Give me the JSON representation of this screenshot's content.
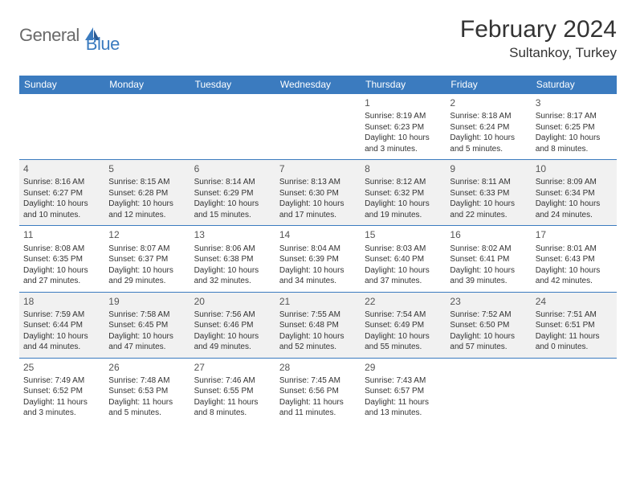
{
  "brand": {
    "text1": "General",
    "text2": "Blue",
    "icon_color": "#3b7bbf"
  },
  "header": {
    "month_title": "February 2024",
    "location": "Sultankoy, Turkey"
  },
  "palette": {
    "header_bg": "#3b7bbf",
    "header_fg": "#ffffff",
    "row_border": "#3b7bbf",
    "shaded_bg": "#f1f1f1",
    "text": "#333333"
  },
  "weekdays": [
    "Sunday",
    "Monday",
    "Tuesday",
    "Wednesday",
    "Thursday",
    "Friday",
    "Saturday"
  ],
  "weeks": [
    {
      "shaded": false,
      "days": [
        null,
        null,
        null,
        null,
        {
          "n": "1",
          "sunrise": "Sunrise: 8:19 AM",
          "sunset": "Sunset: 6:23 PM",
          "day1": "Daylight: 10 hours",
          "day2": "and 3 minutes."
        },
        {
          "n": "2",
          "sunrise": "Sunrise: 8:18 AM",
          "sunset": "Sunset: 6:24 PM",
          "day1": "Daylight: 10 hours",
          "day2": "and 5 minutes."
        },
        {
          "n": "3",
          "sunrise": "Sunrise: 8:17 AM",
          "sunset": "Sunset: 6:25 PM",
          "day1": "Daylight: 10 hours",
          "day2": "and 8 minutes."
        }
      ]
    },
    {
      "shaded": true,
      "days": [
        {
          "n": "4",
          "sunrise": "Sunrise: 8:16 AM",
          "sunset": "Sunset: 6:27 PM",
          "day1": "Daylight: 10 hours",
          "day2": "and 10 minutes."
        },
        {
          "n": "5",
          "sunrise": "Sunrise: 8:15 AM",
          "sunset": "Sunset: 6:28 PM",
          "day1": "Daylight: 10 hours",
          "day2": "and 12 minutes."
        },
        {
          "n": "6",
          "sunrise": "Sunrise: 8:14 AM",
          "sunset": "Sunset: 6:29 PM",
          "day1": "Daylight: 10 hours",
          "day2": "and 15 minutes."
        },
        {
          "n": "7",
          "sunrise": "Sunrise: 8:13 AM",
          "sunset": "Sunset: 6:30 PM",
          "day1": "Daylight: 10 hours",
          "day2": "and 17 minutes."
        },
        {
          "n": "8",
          "sunrise": "Sunrise: 8:12 AM",
          "sunset": "Sunset: 6:32 PM",
          "day1": "Daylight: 10 hours",
          "day2": "and 19 minutes."
        },
        {
          "n": "9",
          "sunrise": "Sunrise: 8:11 AM",
          "sunset": "Sunset: 6:33 PM",
          "day1": "Daylight: 10 hours",
          "day2": "and 22 minutes."
        },
        {
          "n": "10",
          "sunrise": "Sunrise: 8:09 AM",
          "sunset": "Sunset: 6:34 PM",
          "day1": "Daylight: 10 hours",
          "day2": "and 24 minutes."
        }
      ]
    },
    {
      "shaded": false,
      "days": [
        {
          "n": "11",
          "sunrise": "Sunrise: 8:08 AM",
          "sunset": "Sunset: 6:35 PM",
          "day1": "Daylight: 10 hours",
          "day2": "and 27 minutes."
        },
        {
          "n": "12",
          "sunrise": "Sunrise: 8:07 AM",
          "sunset": "Sunset: 6:37 PM",
          "day1": "Daylight: 10 hours",
          "day2": "and 29 minutes."
        },
        {
          "n": "13",
          "sunrise": "Sunrise: 8:06 AM",
          "sunset": "Sunset: 6:38 PM",
          "day1": "Daylight: 10 hours",
          "day2": "and 32 minutes."
        },
        {
          "n": "14",
          "sunrise": "Sunrise: 8:04 AM",
          "sunset": "Sunset: 6:39 PM",
          "day1": "Daylight: 10 hours",
          "day2": "and 34 minutes."
        },
        {
          "n": "15",
          "sunrise": "Sunrise: 8:03 AM",
          "sunset": "Sunset: 6:40 PM",
          "day1": "Daylight: 10 hours",
          "day2": "and 37 minutes."
        },
        {
          "n": "16",
          "sunrise": "Sunrise: 8:02 AM",
          "sunset": "Sunset: 6:41 PM",
          "day1": "Daylight: 10 hours",
          "day2": "and 39 minutes."
        },
        {
          "n": "17",
          "sunrise": "Sunrise: 8:01 AM",
          "sunset": "Sunset: 6:43 PM",
          "day1": "Daylight: 10 hours",
          "day2": "and 42 minutes."
        }
      ]
    },
    {
      "shaded": true,
      "days": [
        {
          "n": "18",
          "sunrise": "Sunrise: 7:59 AM",
          "sunset": "Sunset: 6:44 PM",
          "day1": "Daylight: 10 hours",
          "day2": "and 44 minutes."
        },
        {
          "n": "19",
          "sunrise": "Sunrise: 7:58 AM",
          "sunset": "Sunset: 6:45 PM",
          "day1": "Daylight: 10 hours",
          "day2": "and 47 minutes."
        },
        {
          "n": "20",
          "sunrise": "Sunrise: 7:56 AM",
          "sunset": "Sunset: 6:46 PM",
          "day1": "Daylight: 10 hours",
          "day2": "and 49 minutes."
        },
        {
          "n": "21",
          "sunrise": "Sunrise: 7:55 AM",
          "sunset": "Sunset: 6:48 PM",
          "day1": "Daylight: 10 hours",
          "day2": "and 52 minutes."
        },
        {
          "n": "22",
          "sunrise": "Sunrise: 7:54 AM",
          "sunset": "Sunset: 6:49 PM",
          "day1": "Daylight: 10 hours",
          "day2": "and 55 minutes."
        },
        {
          "n": "23",
          "sunrise": "Sunrise: 7:52 AM",
          "sunset": "Sunset: 6:50 PM",
          "day1": "Daylight: 10 hours",
          "day2": "and 57 minutes."
        },
        {
          "n": "24",
          "sunrise": "Sunrise: 7:51 AM",
          "sunset": "Sunset: 6:51 PM",
          "day1": "Daylight: 11 hours",
          "day2": "and 0 minutes."
        }
      ]
    },
    {
      "shaded": false,
      "days": [
        {
          "n": "25",
          "sunrise": "Sunrise: 7:49 AM",
          "sunset": "Sunset: 6:52 PM",
          "day1": "Daylight: 11 hours",
          "day2": "and 3 minutes."
        },
        {
          "n": "26",
          "sunrise": "Sunrise: 7:48 AM",
          "sunset": "Sunset: 6:53 PM",
          "day1": "Daylight: 11 hours",
          "day2": "and 5 minutes."
        },
        {
          "n": "27",
          "sunrise": "Sunrise: 7:46 AM",
          "sunset": "Sunset: 6:55 PM",
          "day1": "Daylight: 11 hours",
          "day2": "and 8 minutes."
        },
        {
          "n": "28",
          "sunrise": "Sunrise: 7:45 AM",
          "sunset": "Sunset: 6:56 PM",
          "day1": "Daylight: 11 hours",
          "day2": "and 11 minutes."
        },
        {
          "n": "29",
          "sunrise": "Sunrise: 7:43 AM",
          "sunset": "Sunset: 6:57 PM",
          "day1": "Daylight: 11 hours",
          "day2": "and 13 minutes."
        },
        null,
        null
      ]
    }
  ]
}
